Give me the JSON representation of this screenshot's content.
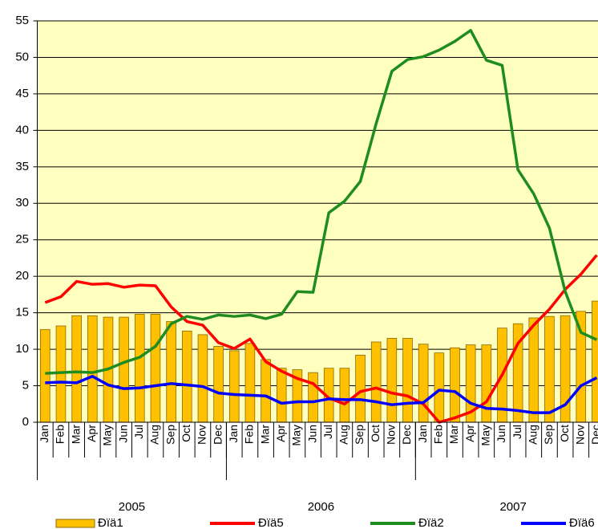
{
  "chart_data": {
    "type": "bar_line",
    "categories": [
      "Jan",
      "Feb",
      "Mar",
      "Apr",
      "May",
      "Jun",
      "Jul",
      "Aug",
      "Sep",
      "Oct",
      "Nov",
      "Dec",
      "Jan",
      "Feb",
      "Mar",
      "Apr",
      "May",
      "Jun",
      "Jul",
      "Aug",
      "Sep",
      "Oct",
      "Nov",
      "Dec",
      "Jan",
      "Feb",
      "Mar",
      "Apr",
      "May",
      "Jun",
      "Jul",
      "Aug",
      "Sep",
      "Oct",
      "Nov",
      "Dec"
    ],
    "groups": [
      "2005",
      "2006",
      "2007"
    ],
    "series": [
      {
        "name": "Ðïä1",
        "kind": "bar",
        "color": "#ffc000",
        "values": [
          12.7,
          13.2,
          14.6,
          14.6,
          14.4,
          14.4,
          14.8,
          14.8,
          13.8,
          12.5,
          12.0,
          10.4,
          9.8,
          10.8,
          8.6,
          7.4,
          7.2,
          6.8,
          7.4,
          7.4,
          9.2,
          11.0,
          11.5,
          11.5,
          10.7,
          9.5,
          10.2,
          10.6,
          10.6,
          12.9,
          13.5,
          14.3,
          14.5,
          14.6,
          15.2,
          16.6
        ]
      },
      {
        "name": "Ðïä5",
        "kind": "line",
        "color": "#ff0000",
        "values": [
          16.4,
          17.2,
          19.3,
          18.9,
          19.0,
          18.5,
          18.8,
          18.7,
          15.8,
          13.8,
          13.3,
          10.9,
          10.1,
          11.4,
          8.3,
          7.0,
          6.0,
          5.3,
          3.3,
          2.5,
          4.2,
          4.7,
          4.0,
          3.6,
          2.5,
          0.0,
          0.6,
          1.4,
          2.8,
          6.5,
          10.8,
          13.3,
          15.5,
          18.2,
          20.3,
          22.9
        ]
      },
      {
        "name": "Ðïä2",
        "kind": "line",
        "color": "#1f8c1f",
        "values": [
          6.7,
          6.8,
          6.9,
          6.8,
          7.3,
          8.2,
          8.9,
          10.4,
          13.5,
          14.5,
          14.1,
          14.7,
          14.5,
          14.7,
          14.2,
          14.8,
          17.9,
          17.8,
          28.7,
          30.3,
          33.0,
          40.9,
          48.1,
          49.7,
          50.1,
          51.0,
          52.2,
          53.7,
          49.6,
          48.9,
          34.6,
          31.3,
          26.6,
          17.9,
          12.3,
          11.3
        ]
      },
      {
        "name": "Ðïä6",
        "kind": "line",
        "color": "#0000ff",
        "values": [
          5.4,
          5.5,
          5.4,
          6.3,
          5.1,
          4.6,
          4.7,
          5.0,
          5.3,
          5.1,
          4.9,
          4.0,
          3.8,
          3.7,
          3.6,
          2.6,
          2.8,
          2.8,
          3.2,
          3.1,
          3.1,
          2.8,
          2.4,
          2.6,
          2.7,
          4.4,
          4.2,
          2.6,
          1.9,
          1.8,
          1.6,
          1.3,
          1.3,
          2.4,
          5.0,
          6.1
        ]
      }
    ],
    "ylim": [
      0,
      55
    ],
    "yticks": [
      0,
      5,
      10,
      15,
      20,
      25,
      30,
      35,
      40,
      45,
      50,
      55
    ],
    "grid": true
  }
}
